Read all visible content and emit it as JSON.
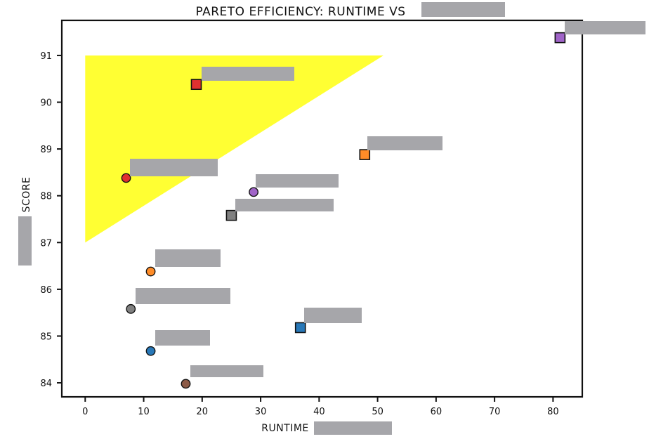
{
  "chart_data": {
    "type": "scatter",
    "title": "PARETO EFFICIENCY: RUNTIME VS",
    "xlabel": "RUNTIME",
    "ylabel": "SCORE",
    "xlim": [
      -4,
      85
    ],
    "ylim": [
      83.7,
      91.75
    ],
    "xticks": [
      0,
      10,
      20,
      30,
      40,
      50,
      60,
      70,
      80
    ],
    "yticks": [
      84,
      85,
      86,
      87,
      88,
      89,
      90,
      91
    ],
    "grid": false,
    "pareto_region": {
      "color": "#ffff33",
      "vertices": [
        [
          0,
          91.0
        ],
        [
          51,
          91.0
        ],
        [
          0,
          87.0
        ]
      ]
    },
    "points": [
      {
        "x": 7.0,
        "y": 88.38,
        "marker": "circle",
        "color": "#e03030"
      },
      {
        "x": 19.0,
        "y": 90.38,
        "marker": "square",
        "color": "#e03030"
      },
      {
        "x": 28.8,
        "y": 88.08,
        "marker": "circle",
        "color": "#a064c8"
      },
      {
        "x": 25.0,
        "y": 87.58,
        "marker": "square",
        "color": "#808080"
      },
      {
        "x": 47.8,
        "y": 88.88,
        "marker": "square",
        "color": "#ff8c28"
      },
      {
        "x": 81.2,
        "y": 91.38,
        "marker": "square",
        "color": "#a064c8"
      },
      {
        "x": 11.2,
        "y": 86.38,
        "marker": "circle",
        "color": "#ff8c28"
      },
      {
        "x": 7.8,
        "y": 85.58,
        "marker": "circle",
        "color": "#808080"
      },
      {
        "x": 11.2,
        "y": 84.68,
        "marker": "circle",
        "color": "#2878b8"
      },
      {
        "x": 36.8,
        "y": 85.18,
        "marker": "square",
        "color": "#2878b8"
      },
      {
        "x": 17.2,
        "y": 83.98,
        "marker": "circle",
        "color": "#8c5a46"
      }
    ]
  }
}
